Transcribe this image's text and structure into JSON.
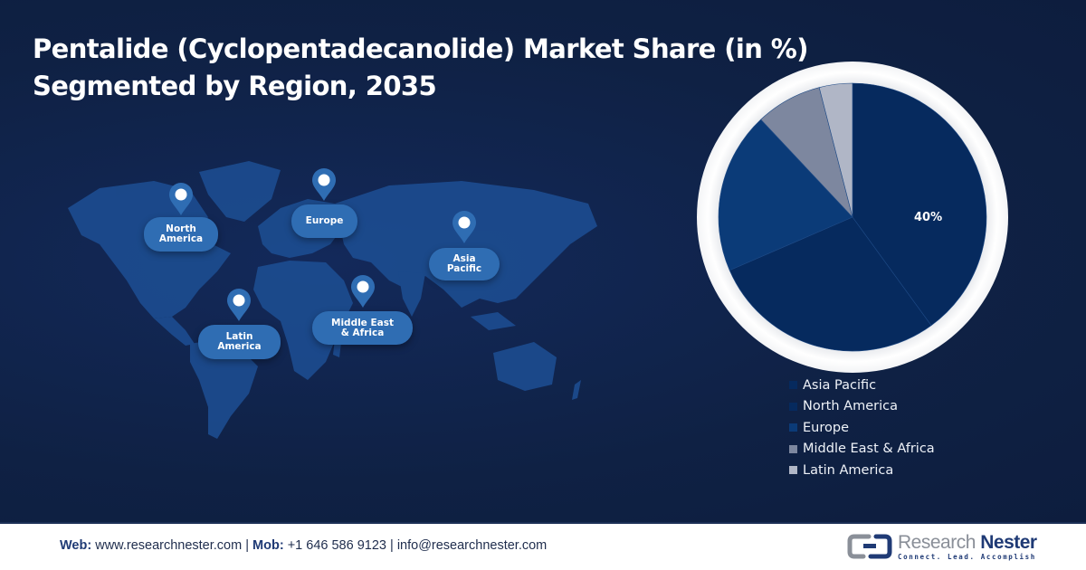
{
  "header": {
    "title_line1": "Pentalide (Cyclopentadecanolide) Market Share (in %)",
    "title_line2": "Segmented by Region, 2035"
  },
  "map": {
    "regions": [
      {
        "name": "north-america",
        "label_line1": "North",
        "label_line2": "America"
      },
      {
        "name": "europe",
        "label_line1": "Europe",
        "label_line2": ""
      },
      {
        "name": "asia-pacific",
        "label_line1": "Asia",
        "label_line2": "Pacific"
      },
      {
        "name": "latin-america",
        "label_line1": "Latin",
        "label_line2": "America"
      },
      {
        "name": "middle-east-africa",
        "label_line1": "Middle East",
        "label_line2": "& Africa"
      }
    ],
    "pin_icon": "map-pin-icon"
  },
  "chart_data": {
    "type": "pie",
    "title": "Pentalide (Cyclopentadecanolide) Market Share (in %) Segmented by Region, 2035",
    "categories": [
      "Asia Pacific",
      "North America",
      "Europe",
      "Middle East & Africa",
      "Latin America"
    ],
    "values": [
      40,
      28.5,
      19.5,
      8,
      4
    ],
    "colors": [
      "#062a5e",
      "#062a5e",
      "#0b3b78",
      "#7d879f",
      "#b0b6c6"
    ],
    "data_labels": [
      {
        "category": "Asia Pacific",
        "text": "40%"
      }
    ],
    "start_angle": "12 o'clock, clockwise",
    "legend_position": "bottom-right"
  },
  "pie_label": "40%",
  "legend": {
    "items": [
      {
        "label": "Asia Pacific",
        "color": "#062a5e"
      },
      {
        "label": "North America",
        "color": "#062a5e"
      },
      {
        "label": "Europe",
        "color": "#0b3b78"
      },
      {
        "label": "Middle East & Africa",
        "color": "#7d879f"
      },
      {
        "label": "Latin America",
        "color": "#b0b6c6"
      }
    ]
  },
  "footer": {
    "web_label": "Web:",
    "web_value": "www.researchnester.com",
    "sep1": "|",
    "mob_label": "Mob:",
    "mob_value": "+1 646 586 9123",
    "sep2": "|",
    "email": "info@researchnester.com",
    "logo_name_part1": "Research",
    "logo_name_part2": "Nester",
    "logo_tagline": "Connect. Lead. Accomplish"
  },
  "colors": {
    "background": "#0f2144",
    "tag": "#2f6db3",
    "map_land": "#1d4f94"
  }
}
